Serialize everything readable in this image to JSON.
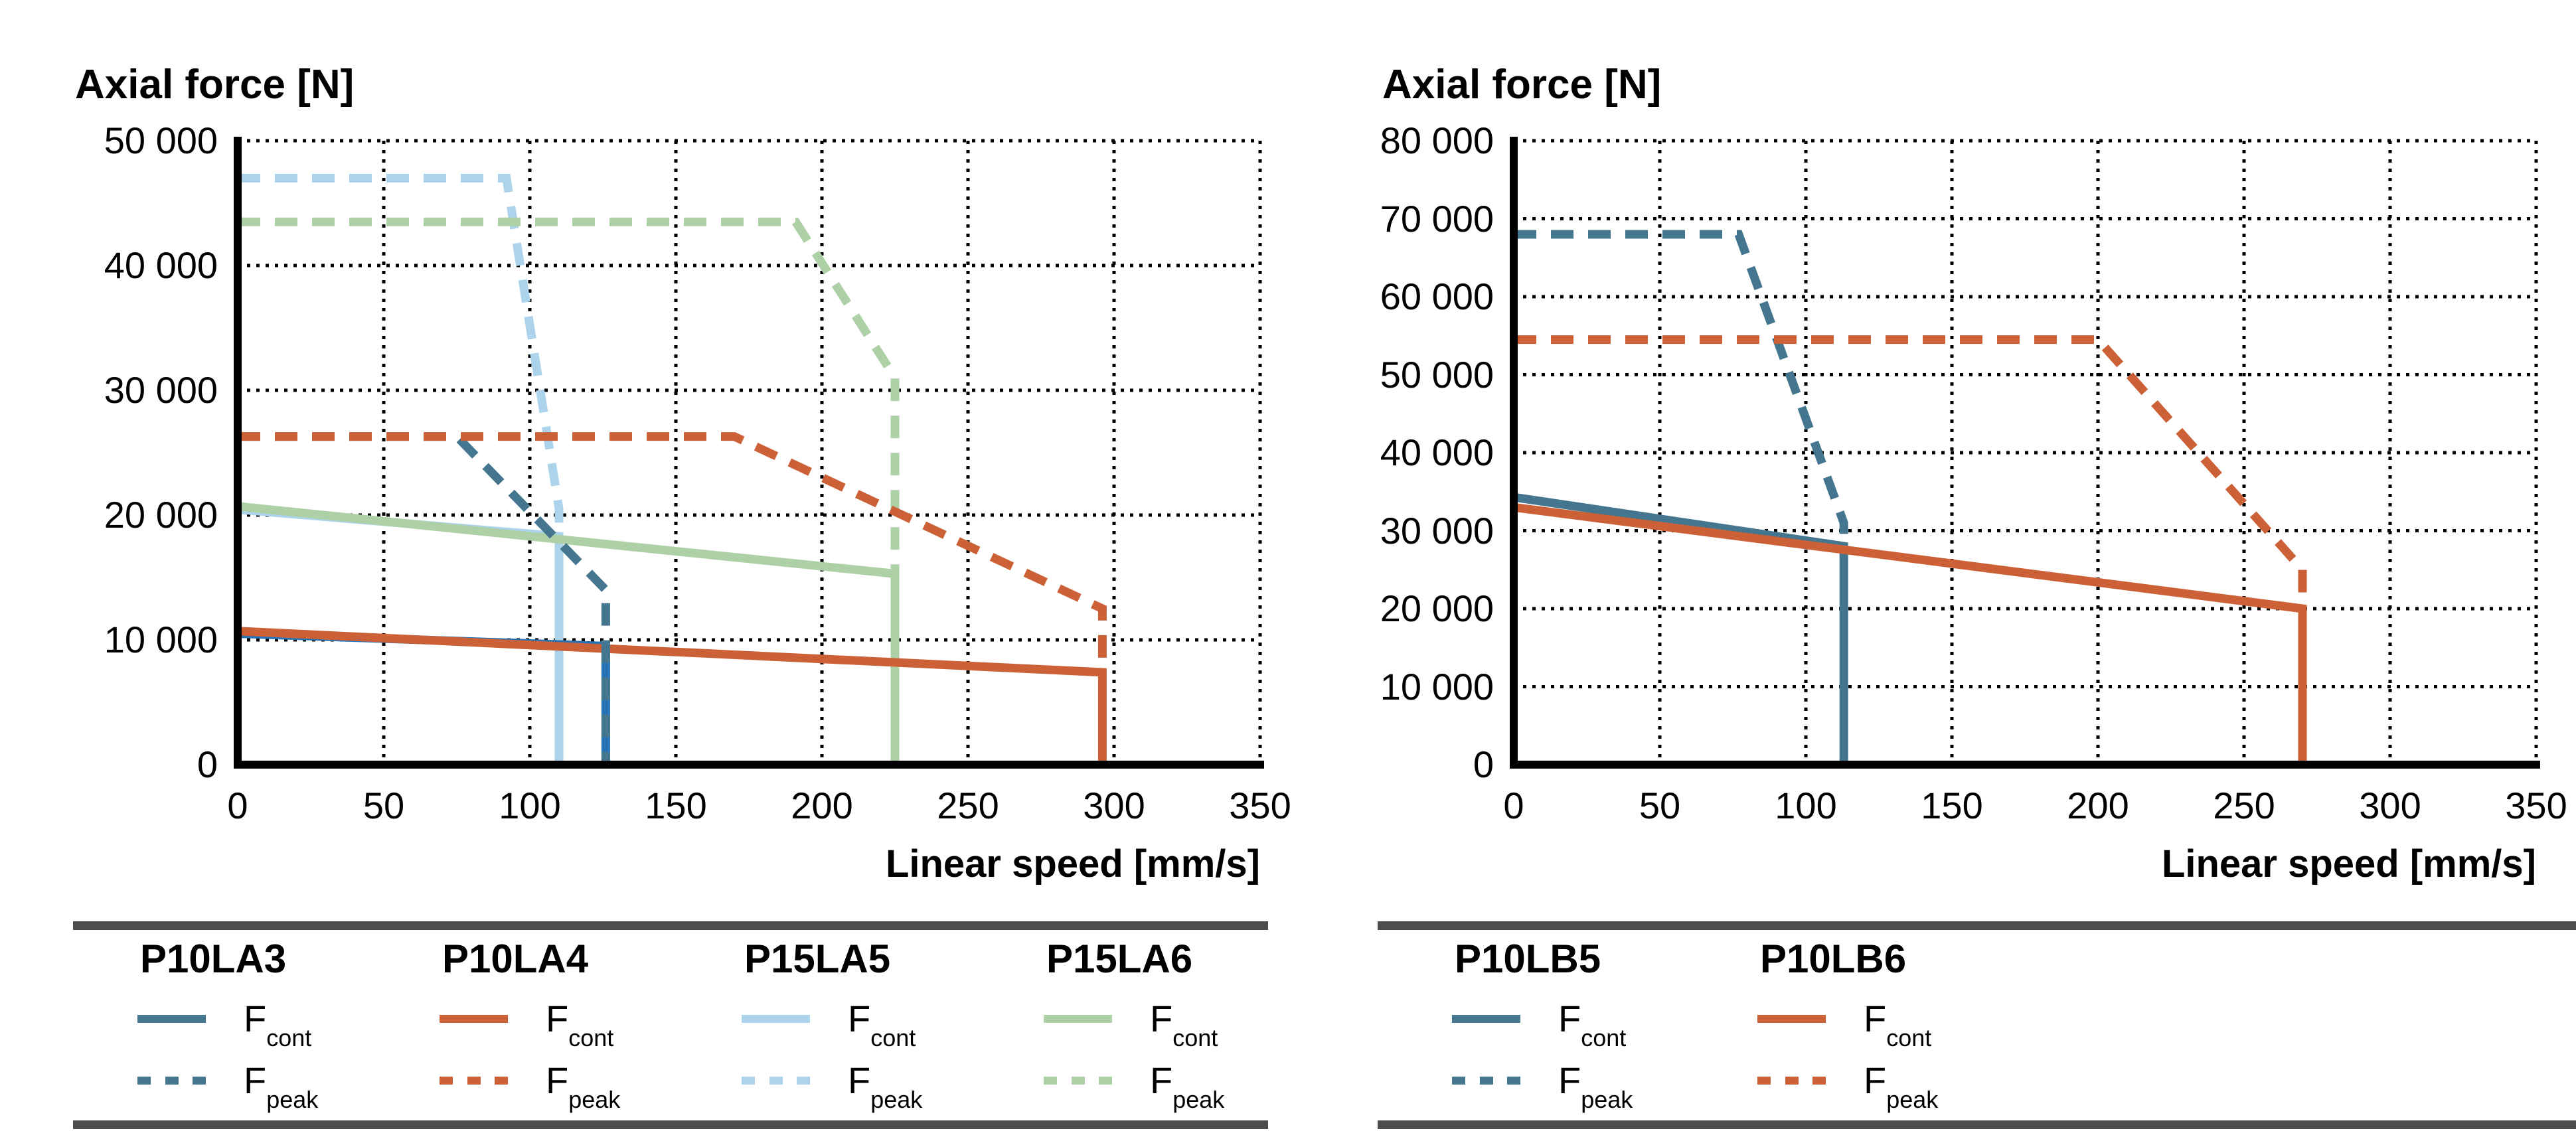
{
  "labels": {
    "f": "F",
    "cont": "cont",
    "peak": "peak"
  },
  "ui": {
    "background": "#FFFFFF",
    "text_color": "#000000",
    "grid_color": "#000000",
    "axis_color": "#000000",
    "separator_color": "#4D4D4D"
  },
  "chart_data": {
    "type": "line",
    "charts": [
      {
        "title": "Axial force [N]",
        "xlabel": "Linear speed [mm/s]",
        "xlim": [
          0,
          350
        ],
        "ylim": [
          0,
          50000
        ],
        "x_ticks": [
          0,
          50,
          100,
          150,
          200,
          250,
          300,
          350
        ],
        "x_tick_labels": [
          "0",
          "50",
          "100",
          "150",
          "200",
          "250",
          "300",
          "350"
        ],
        "y_ticks": [
          0,
          10000,
          20000,
          30000,
          40000,
          50000
        ],
        "y_tick_labels": [
          "0",
          "10 000",
          "20 000",
          "30 000",
          "40 000",
          "50 000"
        ],
        "grid": "dotted",
        "legend_position": "bottom",
        "models": [
          {
            "name": "P10LA3",
            "color": "#44778F"
          },
          {
            "name": "P10LA4",
            "color": "#CC6036"
          },
          {
            "name": "P15LA5",
            "color": "#ABD3EB"
          },
          {
            "name": "P15LA6",
            "color": "#AED0A6"
          }
        ],
        "series": [
          {
            "model": "P15LA5",
            "force": "F_cont",
            "style": "solid",
            "color": "#ABD3EB",
            "points": [
              [
                0,
                20450
              ],
              [
                110,
                18300
              ],
              [
                110,
                0
              ]
            ]
          },
          {
            "model": "P15LA6",
            "force": "F_cont",
            "style": "solid",
            "color": "#AED0A6",
            "points": [
              [
                0,
                20700
              ],
              [
                225,
                15300
              ],
              [
                225,
                0
              ]
            ]
          },
          {
            "model": "P10LA3",
            "force": "F_cont",
            "style": "solid",
            "color": "#2772B4",
            "points": [
              [
                0,
                10500
              ],
              [
                126,
                9500
              ],
              [
                126,
                0
              ]
            ]
          },
          {
            "model": "P10LA4",
            "force": "F_cont",
            "style": "solid",
            "color": "#CC6036",
            "points": [
              [
                0,
                10700
              ],
              [
                296,
                7400
              ],
              [
                296,
                0
              ]
            ]
          },
          {
            "model": "P15LA5",
            "force": "F_peak",
            "style": "dashed",
            "color": "#ABD3EB",
            "points": [
              [
                0,
                47000
              ],
              [
                92,
                47000
              ],
              [
                110,
                20500
              ],
              [
                110,
                18300
              ]
            ]
          },
          {
            "model": "P15LA6",
            "force": "F_peak",
            "style": "dashed",
            "color": "#AED0A6",
            "points": [
              [
                0,
                43500
              ],
              [
                191,
                43500
              ],
              [
                225,
                31000
              ],
              [
                225,
                15300
              ]
            ]
          },
          {
            "model": "P10LA3",
            "force": "F_peak",
            "style": "dashed",
            "color": "#44778F",
            "points": [
              [
                0,
                26300
              ],
              [
                75,
                26300
              ],
              [
                126,
                14000
              ],
              [
                126,
                0
              ]
            ]
          },
          {
            "model": "P10LA4",
            "force": "F_peak",
            "style": "dashed",
            "color": "#CC6036",
            "points": [
              [
                0,
                26300
              ],
              [
                170,
                26300
              ],
              [
                296,
                12500
              ],
              [
                296,
                7400
              ]
            ]
          }
        ]
      },
      {
        "title": "Axial force [N]",
        "xlabel": "Linear speed [mm/s]",
        "xlim": [
          0,
          350
        ],
        "ylim": [
          0,
          80000
        ],
        "x_ticks": [
          0,
          50,
          100,
          150,
          200,
          250,
          300,
          350
        ],
        "x_tick_labels": [
          "0",
          "50",
          "100",
          "150",
          "200",
          "250",
          "300",
          "350"
        ],
        "y_ticks": [
          0,
          10000,
          20000,
          30000,
          40000,
          50000,
          60000,
          70000,
          80000
        ],
        "y_tick_labels": [
          "0",
          "10 000",
          "20 000",
          "30 000",
          "40 000",
          "50 000",
          "60 000",
          "70 000",
          "80 000"
        ],
        "grid": "dotted",
        "legend_position": "bottom",
        "models": [
          {
            "name": "P10LB5",
            "color": "#44778F"
          },
          {
            "name": "P10LB6",
            "color": "#CC6036"
          }
        ],
        "series": [
          {
            "model": "P10LB5",
            "force": "F_cont",
            "style": "solid",
            "color": "#44778F",
            "points": [
              [
                0,
                34300
              ],
              [
                113,
                28000
              ],
              [
                113,
                0
              ]
            ]
          },
          {
            "model": "P10LB6",
            "force": "F_cont",
            "style": "solid",
            "color": "#CC6036",
            "points": [
              [
                0,
                33000
              ],
              [
                270,
                20000
              ],
              [
                270,
                0
              ]
            ]
          },
          {
            "model": "P10LB5",
            "force": "F_peak",
            "style": "dashed",
            "color": "#44778F",
            "points": [
              [
                0,
                68000
              ],
              [
                77,
                68000
              ],
              [
                113,
                31000
              ],
              [
                113,
                28000
              ]
            ]
          },
          {
            "model": "P10LB6",
            "force": "F_peak",
            "style": "dashed",
            "color": "#CC6036",
            "points": [
              [
                0,
                54500
              ],
              [
                200,
                54500
              ],
              [
                270,
                25000
              ],
              [
                270,
                20000
              ]
            ]
          }
        ]
      }
    ]
  }
}
